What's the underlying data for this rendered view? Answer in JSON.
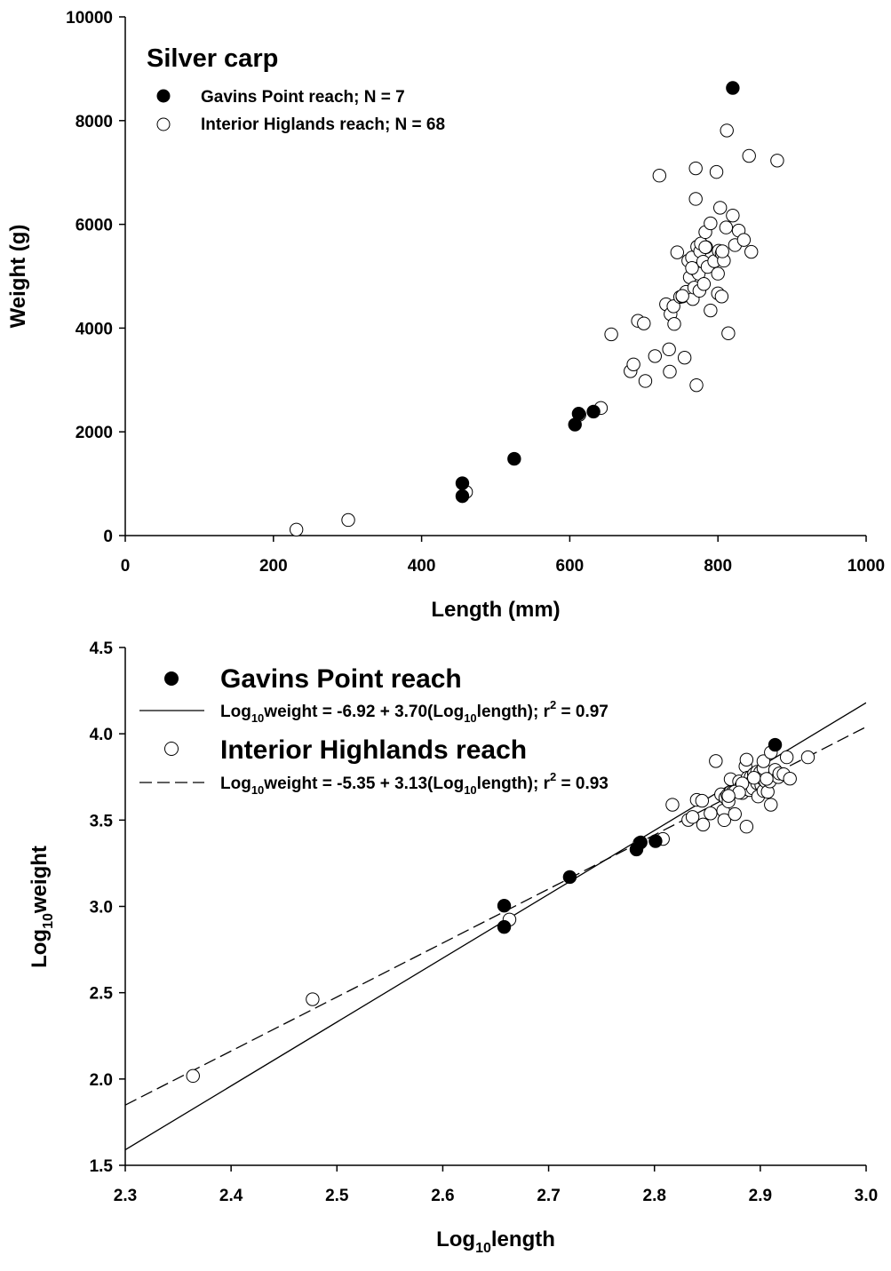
{
  "chart_data": [
    {
      "type": "scatter",
      "title": "Silver carp",
      "xlabel": "Length (mm)",
      "ylabel": "Weight (g)",
      "xlim": [
        0,
        1000
      ],
      "ylim": [
        0,
        10000
      ],
      "xticks": [
        0,
        200,
        400,
        600,
        800,
        1000
      ],
      "yticks": [
        0,
        2000,
        4000,
        6000,
        8000,
        10000
      ],
      "xtick_labels": [
        "0",
        "200",
        "400",
        "600",
        "800",
        "1000"
      ],
      "ytick_labels": [
        "0",
        "2000",
        "4000",
        "6000",
        "8000",
        "10000"
      ],
      "grid": false,
      "legend_position": "top-left",
      "series": [
        {
          "name": "Gavins Point reach; N = 7",
          "marker": "filled-circle",
          "color": "#000000",
          "points": [
            [
              455,
              760
            ],
            [
              455,
              1010
            ],
            [
              525,
              1480
            ],
            [
              607,
              2140
            ],
            [
              612,
              2350
            ],
            [
              632,
              2390
            ],
            [
              820,
              8630
            ]
          ]
        },
        {
          "name": "Interior Higlands reach; N = 68",
          "marker": "open-circle",
          "color": "#000000",
          "points": [
            [
              231,
              115
            ],
            [
              301,
              300
            ],
            [
              460,
              840
            ],
            [
              613,
              2330
            ],
            [
              642,
              2460
            ],
            [
              656,
              3880
            ],
            [
              682,
              3170
            ],
            [
              686,
              3300
            ],
            [
              692,
              4140
            ],
            [
              700,
              4090
            ],
            [
              702,
              2980
            ],
            [
              715,
              3460
            ],
            [
              721,
              6940
            ],
            [
              730,
              4460
            ],
            [
              734,
              3590
            ],
            [
              735,
              3160
            ],
            [
              736,
              4270
            ],
            [
              740,
              4420
            ],
            [
              741,
              4080
            ],
            [
              745,
              5460
            ],
            [
              749,
              4600
            ],
            [
              752,
              4610
            ],
            [
              755,
              3430
            ],
            [
              757,
              4700
            ],
            [
              760,
              5300
            ],
            [
              762,
              4980
            ],
            [
              765,
              5360
            ],
            [
              766,
              4560
            ],
            [
              768,
              4780
            ],
            [
              770,
              6490
            ],
            [
              770,
              5120
            ],
            [
              770,
              7080
            ],
            [
              771,
              2900
            ],
            [
              772,
              5570
            ],
            [
              774,
              5050
            ],
            [
              775,
              4720
            ],
            [
              776,
              5480
            ],
            [
              777,
              5630
            ],
            [
              780,
              5280
            ],
            [
              781,
              4850
            ],
            [
              783,
              5850
            ],
            [
              784,
              5560
            ],
            [
              786,
              5180
            ],
            [
              790,
              6020
            ],
            [
              790,
              4340
            ],
            [
              795,
              5290
            ],
            [
              798,
              7010
            ],
            [
              800,
              4670
            ],
            [
              800,
              5050
            ],
            [
              801,
              5490
            ],
            [
              803,
              6320
            ],
            [
              805,
              5440
            ],
            [
              805,
              4610
            ],
            [
              808,
              5300
            ],
            [
              811,
              5940
            ],
            [
              812,
              7810
            ],
            [
              814,
              3900
            ],
            [
              820,
              6170
            ],
            [
              823,
              5600
            ],
            [
              828,
              5880
            ],
            [
              835,
              5700
            ],
            [
              842,
              7320
            ],
            [
              845,
              5470
            ],
            [
              880,
              7230
            ],
            [
              752,
              4620
            ],
            [
              765,
              5160
            ],
            [
              783,
              5560
            ],
            [
              806,
              5480
            ]
          ]
        }
      ]
    },
    {
      "type": "scatter",
      "title": "",
      "xlabel_main": "Log",
      "xlabel_sub": "10",
      "xlabel_rest": "length",
      "ylabel_main": "Log",
      "ylabel_sub": "10",
      "ylabel_rest": "weight",
      "xlim": [
        2.3,
        3.0
      ],
      "ylim": [
        1.5,
        4.5
      ],
      "xticks": [
        2.3,
        2.4,
        2.5,
        2.6,
        2.7,
        2.8,
        2.9,
        3.0
      ],
      "yticks": [
        1.5,
        2.0,
        2.5,
        3.0,
        3.5,
        4.0,
        4.5
      ],
      "xtick_labels": [
        "2.3",
        "2.4",
        "2.5",
        "2.6",
        "2.7",
        "2.8",
        "2.9",
        "3.0"
      ],
      "ytick_labels": [
        "1.5",
        "2.0",
        "2.5",
        "3.0",
        "3.5",
        "4.0",
        "4.5"
      ],
      "grid": false,
      "legend_position": "top-left",
      "series": [
        {
          "name": "Gavins Point reach",
          "marker": "filled-circle",
          "color": "#000000",
          "regression": {
            "intercept": -6.92,
            "slope": 3.7,
            "style": "solid",
            "label_pre": "Log",
            "label_sub": "10",
            "label_mid": "weight = -6.92 + 3.70(Log",
            "label_sub2": "10",
            "label_post": "length); r",
            "label_sup": "2",
            "label_end": " = 0.97"
          },
          "points": [
            [
              2.658,
              2.881
            ],
            [
              2.658,
              3.004
            ],
            [
              2.72,
              3.17
            ],
            [
              2.783,
              3.33
            ],
            [
              2.787,
              3.371
            ],
            [
              2.801,
              3.378
            ],
            [
              2.914,
              3.936
            ]
          ]
        },
        {
          "name": "Interior Highlands reach",
          "marker": "open-circle",
          "color": "#000000",
          "regression": {
            "intercept": -5.35,
            "slope": 3.13,
            "style": "dashed",
            "label_pre": "Log",
            "label_sub": "10",
            "label_mid": "weight = -5.35 + 3.13(Log",
            "label_sub2": "10",
            "label_post": "length); r",
            "label_sup": "2",
            "label_end": " = 0.93"
          },
          "points": [
            [
              2.364,
              2.018
            ],
            [
              2.477,
              2.462
            ],
            [
              2.663,
              2.924
            ],
            [
              2.786,
              3.367
            ],
            [
              2.808,
              3.391
            ],
            [
              2.817,
              3.589
            ],
            [
              2.832,
              3.501
            ],
            [
              2.836,
              3.518
            ],
            [
              2.84,
              3.617
            ],
            [
              2.845,
              3.612
            ],
            [
              2.846,
              3.474
            ],
            [
              2.853,
              3.539
            ],
            [
              2.858,
              3.842
            ],
            [
              2.863,
              3.649
            ],
            [
              2.865,
              3.555
            ],
            [
              2.866,
              3.5
            ],
            [
              2.867,
              3.63
            ],
            [
              2.869,
              3.645
            ],
            [
              2.87,
              3.608
            ],
            [
              2.872,
              3.663
            ],
            [
              2.872,
              3.737
            ],
            [
              2.874,
              3.662
            ],
            [
              2.876,
              3.535
            ],
            [
              2.878,
              3.672
            ],
            [
              2.88,
              3.724
            ],
            [
              2.882,
              3.698
            ],
            [
              2.883,
              3.657
            ],
            [
              2.884,
              3.679
            ],
            [
              2.886,
              3.812
            ],
            [
              2.887,
              3.709
            ],
            [
              2.887,
              3.85
            ],
            [
              2.887,
              3.462
            ],
            [
              2.888,
              3.746
            ],
            [
              2.889,
              3.703
            ],
            [
              2.89,
              3.674
            ],
            [
              2.891,
              3.741
            ],
            [
              2.891,
              3.75
            ],
            [
              2.892,
              3.721
            ],
            [
              2.893,
              3.684
            ],
            [
              2.894,
              3.767
            ],
            [
              2.895,
              3.745
            ],
            [
              2.897,
              3.714
            ],
            [
              2.897,
              3.78
            ],
            [
              2.898,
              3.637
            ],
            [
              2.9,
              3.778
            ],
            [
              2.901,
              3.703
            ],
            [
              2.902,
              3.74
            ],
            [
              2.903,
              3.669
            ],
            [
              2.903,
              3.8
            ],
            [
              2.903,
              3.841
            ],
            [
              2.905,
              3.724
            ],
            [
              2.907,
              3.664
            ],
            [
              2.909,
              3.724
            ],
            [
              2.91,
              3.589
            ],
            [
              2.91,
              3.892
            ],
            [
              2.914,
              3.791
            ],
            [
              2.917,
              3.749
            ],
            [
              2.918,
              3.77
            ],
            [
              2.922,
              3.766
            ],
            [
              2.925,
              3.864
            ],
            [
              2.928,
              3.74
            ],
            [
              2.945,
              3.864
            ],
            [
              2.876,
              3.665
            ],
            [
              2.883,
              3.712
            ],
            [
              2.894,
              3.745
            ],
            [
              2.906,
              3.739
            ],
            [
              2.88,
              3.66
            ],
            [
              2.87,
              3.64
            ]
          ]
        }
      ]
    }
  ]
}
